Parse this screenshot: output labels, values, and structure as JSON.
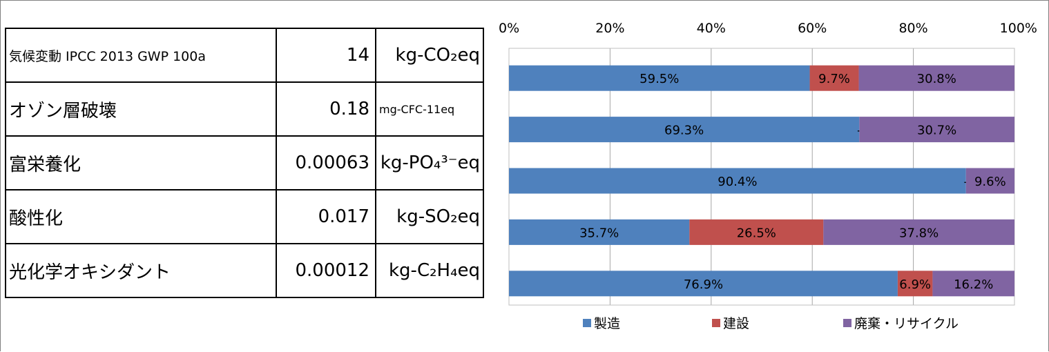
{
  "table": {
    "rows": [
      {
        "name": "気候変動 IPCC 2013 GWP 100a",
        "value": "14",
        "unit": "kg-CO₂eq"
      },
      {
        "name": "オゾン層破壊",
        "value": "0.18",
        "unit": "mg-CFC-11eq"
      },
      {
        "name": "富栄養化",
        "value": "0.00063",
        "unit": "kg-PO₄³⁻eq"
      },
      {
        "name": "酸性化",
        "value": "0.017",
        "unit": "kg-SO₂eq"
      },
      {
        "name": "光化学オキシダント",
        "value": "0.00012",
        "unit": "kg-C₂H₄eq"
      }
    ]
  },
  "colors": {
    "manufacturing": "#4f81bd",
    "construction": "#c0504d",
    "disposal": "#8064a2",
    "grid": "#a6a6a6",
    "axis": "#bfbfbf"
  },
  "chart_data": {
    "type": "bar",
    "orientation": "horizontal",
    "stacked": true,
    "percent": true,
    "xlim": [
      0,
      100
    ],
    "x_ticks": [
      "0%",
      "20%",
      "40%",
      "60%",
      "80%",
      "100%"
    ],
    "grid": true,
    "legend": "bottom",
    "series": [
      {
        "name": "製造",
        "values": [
          59.5,
          69.3,
          90.4,
          35.7,
          76.9
        ],
        "labels": [
          "59.5%",
          "69.3%",
          "90.4%",
          "35.7%",
          "76.9%"
        ]
      },
      {
        "name": "建設",
        "values": [
          9.7,
          0,
          0,
          26.5,
          6.9
        ],
        "labels": [
          "9.7%",
          "-",
          "-",
          "26.5%",
          "6.9%"
        ]
      },
      {
        "name": "廃棄・リサイクル",
        "values": [
          30.8,
          30.7,
          9.6,
          37.8,
          16.2
        ],
        "labels": [
          "30.8%",
          "30.7%",
          "9.6%",
          "37.8%",
          "16.2%"
        ]
      }
    ]
  }
}
